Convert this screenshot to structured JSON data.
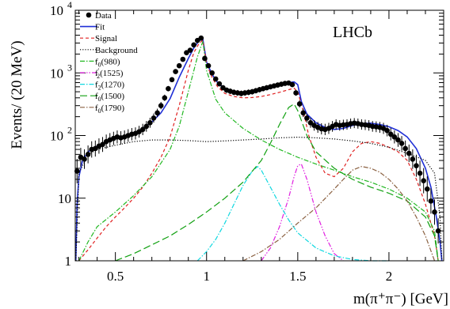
{
  "chart_data": {
    "type": "line",
    "title": "",
    "annotation": "LHCb",
    "xlabel": "m(π⁺π⁻) [GeV]",
    "ylabel": "Events/ (20 MeV)",
    "xlim": [
      0.28,
      2.3
    ],
    "ylim": [
      1,
      10000
    ],
    "yscale": "log",
    "xticks": [
      0.5,
      1,
      1.5,
      2
    ],
    "xtick_labels": [
      "0.5",
      "1",
      "1.5",
      "2"
    ],
    "yticks": [
      1,
      10,
      100,
      1000,
      10000
    ],
    "ytick_labels": [
      "1",
      "10",
      "10^2",
      "10^3",
      "10^4"
    ],
    "grid": false,
    "legend_position": "top-left",
    "series": [
      {
        "name": "Data",
        "style": "points",
        "color": "#000000",
        "x": [
          0.29,
          0.31,
          0.33,
          0.35,
          0.37,
          0.39,
          0.41,
          0.43,
          0.45,
          0.47,
          0.49,
          0.51,
          0.53,
          0.55,
          0.57,
          0.59,
          0.61,
          0.63,
          0.65,
          0.67,
          0.69,
          0.71,
          0.73,
          0.75,
          0.77,
          0.79,
          0.81,
          0.83,
          0.85,
          0.87,
          0.89,
          0.91,
          0.93,
          0.95,
          0.97,
          0.99,
          1.01,
          1.03,
          1.05,
          1.07,
          1.09,
          1.11,
          1.13,
          1.15,
          1.17,
          1.19,
          1.21,
          1.23,
          1.25,
          1.27,
          1.29,
          1.31,
          1.33,
          1.35,
          1.37,
          1.39,
          1.41,
          1.43,
          1.45,
          1.47,
          1.49,
          1.51,
          1.53,
          1.55,
          1.57,
          1.59,
          1.61,
          1.63,
          1.65,
          1.67,
          1.69,
          1.71,
          1.73,
          1.75,
          1.77,
          1.79,
          1.81,
          1.83,
          1.85,
          1.87,
          1.89,
          1.91,
          1.93,
          1.95,
          1.97,
          1.99,
          2.01,
          2.03,
          2.05,
          2.07,
          2.09,
          2.11,
          2.13,
          2.15,
          2.17,
          2.19,
          2.21,
          2.23,
          2.25,
          2.27
        ],
        "y": [
          27,
          45,
          42,
          50,
          60,
          62,
          68,
          72,
          80,
          85,
          90,
          95,
          92,
          95,
          100,
          105,
          108,
          115,
          125,
          140,
          160,
          190,
          230,
          300,
          400,
          560,
          780,
          1050,
          1300,
          1650,
          2100,
          2300,
          2800,
          3300,
          3600,
          1700,
          1300,
          1000,
          800,
          670,
          580,
          530,
          510,
          490,
          480,
          470,
          480,
          490,
          500,
          520,
          540,
          560,
          580,
          600,
          620,
          640,
          660,
          680,
          690,
          650,
          480,
          320,
          230,
          190,
          160,
          145,
          135,
          128,
          125,
          130,
          140,
          150,
          145,
          148,
          150,
          155,
          158,
          155,
          150,
          148,
          145,
          140,
          138,
          135,
          130,
          120,
          105,
          95,
          85,
          75,
          62,
          52,
          42,
          33,
          25,
          19,
          14,
          9,
          6,
          3
        ]
      },
      {
        "name": "Fit",
        "style": "solid",
        "color": "#1f2fd6",
        "x": [
          0.283,
          0.29,
          0.3,
          0.32,
          0.35,
          0.4,
          0.45,
          0.5,
          0.55,
          0.6,
          0.65,
          0.7,
          0.75,
          0.8,
          0.85,
          0.9,
          0.93,
          0.96,
          0.98,
          1.0,
          1.03,
          1.06,
          1.1,
          1.15,
          1.2,
          1.25,
          1.3,
          1.35,
          1.4,
          1.45,
          1.48,
          1.5,
          1.52,
          1.55,
          1.6,
          1.65,
          1.7,
          1.75,
          1.8,
          1.85,
          1.9,
          1.95,
          2.0,
          2.05,
          2.1,
          2.15,
          2.2,
          2.23,
          2.26,
          2.28,
          2.29
        ],
        "y": [
          1,
          8,
          22,
          40,
          55,
          68,
          80,
          90,
          98,
          108,
          130,
          165,
          230,
          390,
          850,
          1700,
          2500,
          3300,
          3400,
          1500,
          950,
          700,
          560,
          500,
          480,
          500,
          530,
          570,
          630,
          700,
          720,
          650,
          350,
          220,
          160,
          135,
          125,
          130,
          145,
          155,
          158,
          150,
          138,
          120,
          95,
          62,
          30,
          15,
          5,
          2,
          1
        ]
      },
      {
        "name": "Signal",
        "style": "dashed",
        "color": "#e02020",
        "x": [
          0.3,
          0.35,
          0.4,
          0.45,
          0.5,
          0.55,
          0.6,
          0.65,
          0.7,
          0.75,
          0.8,
          0.85,
          0.9,
          0.93,
          0.96,
          0.98,
          1.0,
          1.03,
          1.06,
          1.1,
          1.15,
          1.2,
          1.25,
          1.3,
          1.35,
          1.4,
          1.45,
          1.48,
          1.5,
          1.53,
          1.56,
          1.6,
          1.65,
          1.7,
          1.75,
          1.8,
          1.85,
          1.9,
          1.95,
          2.0,
          2.05,
          2.1,
          2.15,
          2.2,
          2.25,
          2.27
        ],
        "y": [
          1,
          1.5,
          2.3,
          3.5,
          5,
          7,
          10,
          15,
          25,
          45,
          95,
          300,
          1100,
          2100,
          3000,
          3300,
          1400,
          850,
          600,
          470,
          420,
          400,
          405,
          420,
          450,
          490,
          540,
          570,
          500,
          250,
          100,
          45,
          25,
          22,
          30,
          55,
          75,
          80,
          75,
          65,
          55,
          40,
          20,
          8,
          2.5,
          1
        ]
      },
      {
        "name": "Background",
        "style": "dotted",
        "color": "#000000",
        "x": [
          0.283,
          0.3,
          0.35,
          0.4,
          0.5,
          0.6,
          0.7,
          0.8,
          0.9,
          1.0,
          1.1,
          1.2,
          1.3,
          1.4,
          1.5,
          1.6,
          1.7,
          1.8,
          1.9,
          2.0,
          2.1,
          2.2,
          2.25,
          2.28,
          2.29
        ],
        "y": [
          1,
          25,
          50,
          60,
          70,
          80,
          85,
          85,
          83,
          80,
          82,
          85,
          88,
          92,
          94,
          92,
          88,
          82,
          75,
          65,
          52,
          40,
          25,
          5,
          1
        ]
      },
      {
        "name": "f0(980)",
        "style": "dashdot",
        "color": "#22b822",
        "x": [
          0.3,
          0.35,
          0.4,
          0.5,
          0.6,
          0.7,
          0.8,
          0.85,
          0.9,
          0.95,
          0.98,
          1.0,
          1.05,
          1.1,
          1.2,
          1.3,
          1.4,
          1.5,
          1.6,
          1.7,
          1.8,
          1.9,
          2.0,
          2.1,
          2.2,
          2.25,
          2.27
        ],
        "y": [
          1,
          2,
          3.5,
          6,
          11,
          22,
          60,
          140,
          500,
          1800,
          3200,
          1100,
          380,
          230,
          130,
          85,
          60,
          45,
          35,
          28,
          22,
          18,
          14,
          10,
          6,
          3,
          1
        ]
      },
      {
        "name": "f2'(1525)",
        "style": "dashdotdot",
        "color": "#e020e0",
        "x": [
          1.3,
          1.35,
          1.4,
          1.45,
          1.48,
          1.5,
          1.52,
          1.55,
          1.6,
          1.65,
          1.7,
          1.75
        ],
        "y": [
          1,
          1.6,
          3.5,
          10,
          22,
          33,
          35,
          20,
          6,
          2.5,
          1.3,
          1
        ]
      },
      {
        "name": "f2(1270)",
        "style": "dashdot",
        "color": "#10d8e0",
        "x": [
          0.95,
          1.0,
          1.05,
          1.1,
          1.15,
          1.2,
          1.25,
          1.28,
          1.3,
          1.35,
          1.4,
          1.45,
          1.5,
          1.6,
          1.7,
          1.8,
          1.9,
          2.0
        ],
        "y": [
          1,
          1.4,
          2.2,
          4,
          8,
          16,
          27,
          32,
          28,
          15,
          8,
          4.5,
          2.8,
          1.6,
          1.2,
          1.05,
          1,
          1
        ]
      },
      {
        "name": "f0(1500)",
        "style": "longdash",
        "color": "#10a010",
        "x": [
          0.5,
          0.6,
          0.7,
          0.8,
          0.9,
          1.0,
          1.1,
          1.2,
          1.3,
          1.35,
          1.4,
          1.45,
          1.48,
          1.5,
          1.55,
          1.6,
          1.7,
          1.8,
          1.9,
          2.0,
          2.1,
          2.2,
          2.25,
          2.27
        ],
        "y": [
          1,
          1.3,
          1.8,
          2.5,
          3.8,
          6,
          10,
          18,
          40,
          75,
          150,
          280,
          320,
          250,
          100,
          55,
          30,
          20,
          15,
          12,
          9,
          5,
          2.5,
          1
        ]
      },
      {
        "name": "f0(1790)",
        "style": "dashdot",
        "color": "#8a6040",
        "x": [
          1.2,
          1.3,
          1.4,
          1.5,
          1.6,
          1.7,
          1.75,
          1.8,
          1.85,
          1.9,
          1.95,
          2.0,
          2.05,
          2.1,
          2.15,
          2.2,
          2.25
        ],
        "y": [
          1,
          1.4,
          2.2,
          4,
          7,
          14,
          20,
          28,
          32,
          30,
          26,
          20,
          14,
          9,
          5,
          2.5,
          1
        ]
      }
    ]
  }
}
